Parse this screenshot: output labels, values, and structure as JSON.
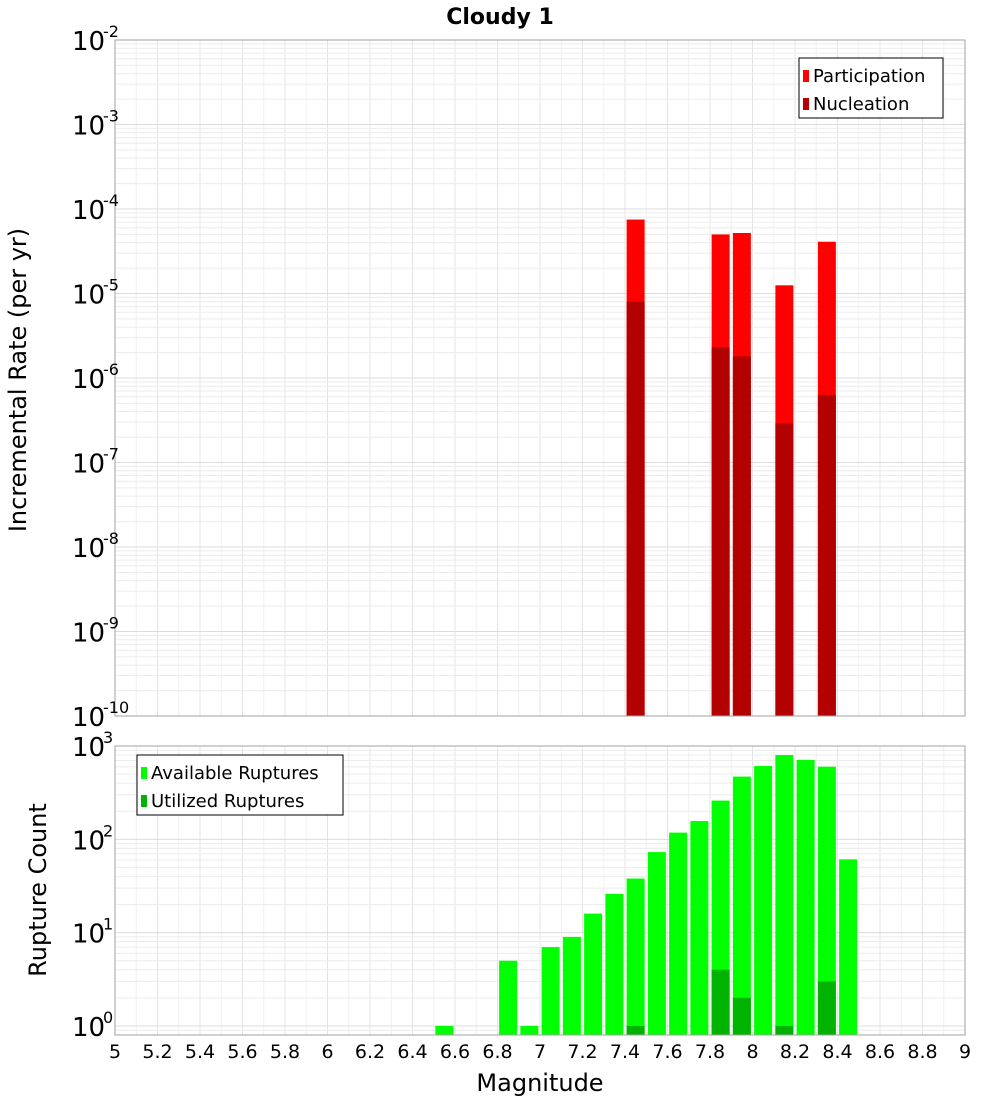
{
  "chart_data": [
    {
      "type": "bar",
      "title": "Cloudy 1",
      "xlabel": "",
      "ylabel": "Incremental Rate (per yr)",
      "yscale": "log",
      "ylim": [
        1e-10,
        0.01
      ],
      "xlim": [
        5,
        9
      ],
      "y_ticks": [
        {
          "base": "10",
          "exp": "-10"
        },
        {
          "base": "10",
          "exp": "-9"
        },
        {
          "base": "10",
          "exp": "-8"
        },
        {
          "base": "10",
          "exp": "-7"
        },
        {
          "base": "10",
          "exp": "-6"
        },
        {
          "base": "10",
          "exp": "-5"
        },
        {
          "base": "10",
          "exp": "-4"
        },
        {
          "base": "10",
          "exp": "-3"
        },
        {
          "base": "10",
          "exp": "-2"
        }
      ],
      "legend": {
        "position": "top-right",
        "entries": [
          {
            "label": "Participation",
            "color": "#ff0000"
          },
          {
            "label": "Nucleation",
            "color": "#b30000"
          }
        ]
      },
      "series": [
        {
          "name": "Participation",
          "color": "#ff0000",
          "x": [
            7.45,
            7.85,
            7.95,
            8.15,
            8.35
          ],
          "values": [
            7.5e-05,
            5e-05,
            5.2e-05,
            1.25e-05,
            4.1e-05
          ]
        },
        {
          "name": "Nucleation",
          "color": "#b30000",
          "x": [
            7.45,
            7.85,
            7.95,
            8.15,
            8.35
          ],
          "values": [
            8e-06,
            2.3e-06,
            1.8e-06,
            2.9e-07,
            6.3e-07
          ]
        }
      ]
    },
    {
      "type": "bar",
      "title": "",
      "xlabel": "Magnitude",
      "ylabel": "Rupture Count",
      "yscale": "log",
      "ylim": [
        0.8,
        1000
      ],
      "xlim": [
        5,
        9
      ],
      "x_ticks": [
        "5",
        "5.2",
        "5.4",
        "5.6",
        "5.8",
        "6",
        "6.2",
        "6.4",
        "6.6",
        "6.8",
        "7",
        "7.2",
        "7.4",
        "7.6",
        "7.8",
        "8",
        "8.2",
        "8.4",
        "8.6",
        "8.8",
        "9"
      ],
      "y_ticks": [
        {
          "base": "10",
          "exp": "0"
        },
        {
          "base": "10",
          "exp": "1"
        },
        {
          "base": "10",
          "exp": "2"
        },
        {
          "base": "10",
          "exp": "3"
        }
      ],
      "legend": {
        "position": "top-left",
        "entries": [
          {
            "label": "Available Ruptures",
            "color": "#00ff00"
          },
          {
            "label": "Utilized Ruptures",
            "color": "#00b300"
          }
        ]
      },
      "series": [
        {
          "name": "Available Ruptures",
          "color": "#00ff00",
          "x": [
            6.55,
            6.85,
            6.95,
            7.05,
            7.15,
            7.25,
            7.35,
            7.45,
            7.55,
            7.65,
            7.75,
            7.85,
            7.95,
            8.05,
            8.15,
            8.25,
            8.35,
            8.45
          ],
          "values": [
            1,
            5,
            1,
            7,
            9,
            16,
            26,
            38,
            73,
            118,
            157,
            260,
            470,
            610,
            800,
            710,
            600,
            61
          ]
        },
        {
          "name": "Utilized Ruptures",
          "color": "#00b300",
          "x": [
            7.45,
            7.85,
            7.95,
            8.15,
            8.35
          ],
          "values": [
            1,
            4,
            2,
            1,
            3
          ]
        }
      ]
    }
  ]
}
